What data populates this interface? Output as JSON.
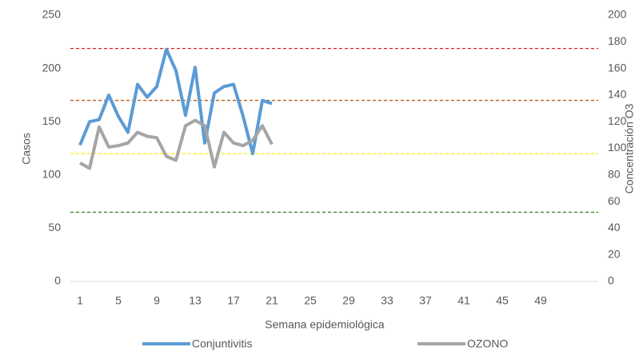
{
  "chart_data": {
    "type": "line",
    "x": [
      1,
      2,
      3,
      4,
      5,
      6,
      7,
      8,
      9,
      10,
      11,
      12,
      13,
      14,
      15,
      16,
      17,
      18,
      19,
      20,
      21
    ],
    "xlim": [
      0,
      55
    ],
    "xticks": [
      1,
      5,
      9,
      13,
      17,
      21,
      25,
      29,
      33,
      37,
      41,
      45,
      49
    ],
    "ylim": [
      0,
      250
    ],
    "yticks": [
      0,
      50,
      100,
      150,
      200,
      250
    ],
    "y2lim": [
      0,
      200
    ],
    "y2ticks": [
      0,
      20,
      40,
      60,
      80,
      100,
      120,
      140,
      160,
      180,
      200
    ],
    "xlabel": "Semana epidemiológica",
    "ylabel": "Casos",
    "y2label": "Concentración O3",
    "grid": false,
    "legend": "bottom",
    "series": [
      {
        "name": "Conjuntivitis",
        "color": "#5b9bd5",
        "values": [
          128,
          150,
          152,
          175,
          155,
          140,
          185,
          173,
          183,
          218,
          198,
          156,
          201,
          130,
          177,
          183,
          185,
          155,
          120,
          170,
          167
        ]
      },
      {
        "name": "OZONO",
        "color": "#a5a5a5",
        "axis": "y2",
        "values": [
          89,
          85,
          116,
          101,
          102,
          104,
          112,
          109,
          108,
          94,
          91,
          117,
          121,
          117,
          86,
          112,
          104,
          102,
          106,
          117,
          103
        ]
      }
    ],
    "reference_lines": [
      {
        "value": 175,
        "color": "#e02020",
        "axis": "y2"
      },
      {
        "value": 136,
        "color": "#c55a11",
        "axis": "y2"
      },
      {
        "value": 96,
        "color": "#f0f000",
        "axis": "y2"
      },
      {
        "value": 52,
        "color": "#3a8a2a",
        "axis": "y2"
      }
    ]
  }
}
